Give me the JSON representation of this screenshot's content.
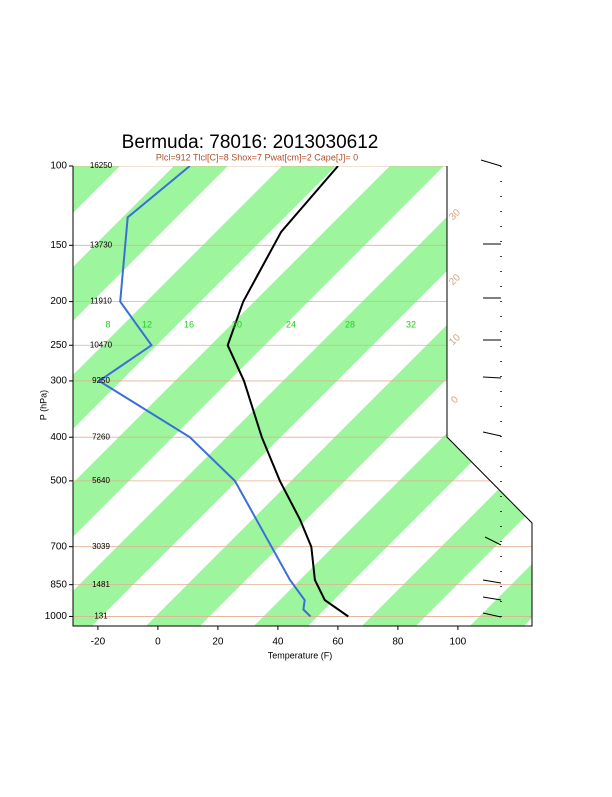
{
  "chart_data": {
    "type": "skewt",
    "title": "Bermuda: 78016:  2013030612",
    "subtitle": "Plcl=912 Tlcl[C]=8 Shox=7 Pwat[cm]=2 Cape[J]= 0",
    "x_label": "Temperature (F)",
    "y_label": "P (hPa)",
    "xlim": [
      -28.3,
      124.7
    ],
    "xticks": [
      -20,
      0,
      20,
      40,
      60,
      80,
      100
    ],
    "ylim": [
      100,
      1050
    ],
    "log_scale": true,
    "yticks": [
      100,
      150,
      200,
      250,
      300,
      400,
      500,
      700,
      850,
      1000
    ],
    "height_labels": [
      "16250",
      "13730",
      "11910",
      "10470",
      "9250",
      "7260",
      "5640",
      "3039",
      "1481",
      "131"
    ],
    "mixing_ratio_labels": [
      "8",
      "12",
      "16",
      "20",
      "24",
      "28",
      "32"
    ],
    "theta_labels": [
      "30",
      "20",
      "10",
      "0"
    ],
    "series": [
      {
        "color": "#000000",
        "pressure": [
          100,
          140,
          200,
          250,
          300,
          400,
          500,
          610,
          700,
          830,
          920,
          1000
        ],
        "values": [
          -93.3,
          -90.3,
          -79.7,
          -70.3,
          -53,
          -28.3,
          -7.7,
          12,
          24.7,
          37,
          47,
          60.3
        ]
      },
      {
        "color": "#3a6fd8",
        "pressure": [
          100,
          130,
          200,
          250,
          300,
          400,
          500,
          830,
          920,
          965,
          1000
        ],
        "values": [
          -142.7,
          -146.3,
          -120.7,
          -95.7,
          -101.3,
          -52.3,
          -22.7,
          28.7,
          40.3,
          43,
          47.7
        ]
      }
    ]
  }
}
